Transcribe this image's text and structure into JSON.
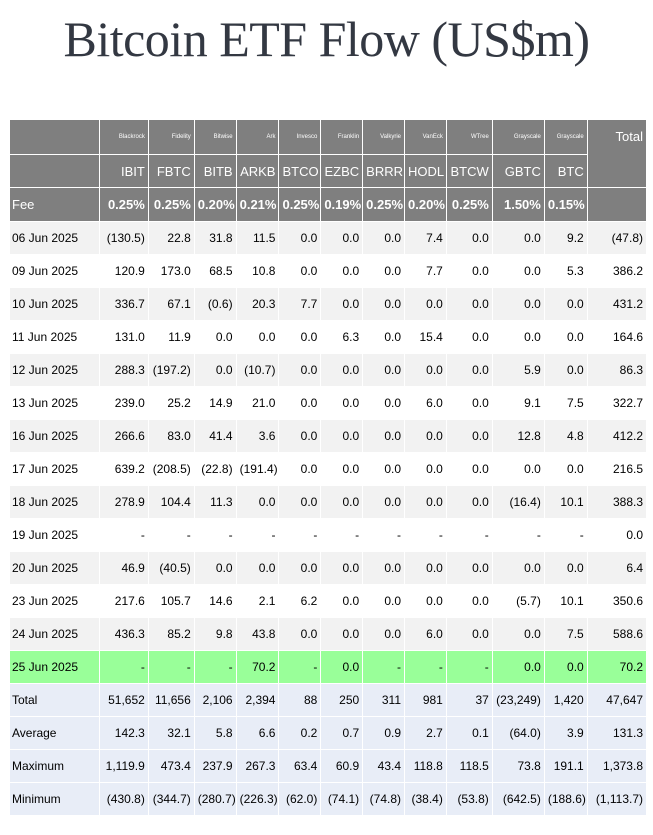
{
  "title": "Bitcoin ETF Flow (US$m)",
  "colors": {
    "header_bg": "#7f7f7f",
    "row_alt_bg": "#f2f2f2",
    "highlight_bg": "#99ff99",
    "stats_bg": "#e8edf7",
    "negative_text": "#e00000"
  },
  "chart_data": {
    "type": "table",
    "title": "Bitcoin ETF Flow (US$m)",
    "columns": [
      {
        "issuer": "Blackrock",
        "ticker": "IBIT",
        "fee": "0.25%"
      },
      {
        "issuer": "Fidelity",
        "ticker": "FBTC",
        "fee": "0.25%"
      },
      {
        "issuer": "Bitwise",
        "ticker": "BITB",
        "fee": "0.20%"
      },
      {
        "issuer": "Ark",
        "ticker": "ARKB",
        "fee": "0.21%"
      },
      {
        "issuer": "Invesco",
        "ticker": "BTCO",
        "fee": "0.25%"
      },
      {
        "issuer": "Franklin",
        "ticker": "EZBC",
        "fee": "0.19%"
      },
      {
        "issuer": "Valkyrie",
        "ticker": "BRRR",
        "fee": "0.25%"
      },
      {
        "issuer": "VanEck",
        "ticker": "HODL",
        "fee": "0.20%"
      },
      {
        "issuer": "WTree",
        "ticker": "BTCW",
        "fee": "0.25%"
      },
      {
        "issuer": "Grayscale",
        "ticker": "GBTC",
        "fee": "1.50%"
      },
      {
        "issuer": "Grayscale",
        "ticker": "BTC",
        "fee": "0.15%"
      }
    ],
    "total_label": "Total",
    "fee_label": "Fee",
    "rows": [
      {
        "date": "06 Jun 2025",
        "values": [
          "(130.5)",
          "22.8",
          "31.8",
          "11.5",
          "0.0",
          "0.0",
          "0.0",
          "7.4",
          "0.0",
          "0.0",
          "9.2"
        ],
        "total": "(47.8)"
      },
      {
        "date": "09 Jun 2025",
        "values": [
          "120.9",
          "173.0",
          "68.5",
          "10.8",
          "0.0",
          "0.0",
          "0.0",
          "7.7",
          "0.0",
          "0.0",
          "5.3"
        ],
        "total": "386.2"
      },
      {
        "date": "10 Jun 2025",
        "values": [
          "336.7",
          "67.1",
          "(0.6)",
          "20.3",
          "7.7",
          "0.0",
          "0.0",
          "0.0",
          "0.0",
          "0.0",
          "0.0"
        ],
        "total": "431.2"
      },
      {
        "date": "11 Jun 2025",
        "values": [
          "131.0",
          "11.9",
          "0.0",
          "0.0",
          "0.0",
          "6.3",
          "0.0",
          "15.4",
          "0.0",
          "0.0",
          "0.0"
        ],
        "total": "164.6"
      },
      {
        "date": "12 Jun 2025",
        "values": [
          "288.3",
          "(197.2)",
          "0.0",
          "(10.7)",
          "0.0",
          "0.0",
          "0.0",
          "0.0",
          "0.0",
          "5.9",
          "0.0"
        ],
        "total": "86.3"
      },
      {
        "date": "13 Jun 2025",
        "values": [
          "239.0",
          "25.2",
          "14.9",
          "21.0",
          "0.0",
          "0.0",
          "0.0",
          "6.0",
          "0.0",
          "9.1",
          "7.5"
        ],
        "total": "322.7"
      },
      {
        "date": "16 Jun 2025",
        "values": [
          "266.6",
          "83.0",
          "41.4",
          "3.6",
          "0.0",
          "0.0",
          "0.0",
          "0.0",
          "0.0",
          "12.8",
          "4.8"
        ],
        "total": "412.2"
      },
      {
        "date": "17 Jun 2025",
        "values": [
          "639.2",
          "(208.5)",
          "(22.8)",
          "(191.4)",
          "0.0",
          "0.0",
          "0.0",
          "0.0",
          "0.0",
          "0.0",
          "0.0"
        ],
        "total": "216.5"
      },
      {
        "date": "18 Jun 2025",
        "values": [
          "278.9",
          "104.4",
          "11.3",
          "0.0",
          "0.0",
          "0.0",
          "0.0",
          "0.0",
          "0.0",
          "(16.4)",
          "10.1"
        ],
        "total": "388.3"
      },
      {
        "date": "19 Jun 2025",
        "values": [
          "-",
          "-",
          "-",
          "-",
          "-",
          "-",
          "-",
          "-",
          "-",
          "-",
          "-"
        ],
        "total": "0.0"
      },
      {
        "date": "20 Jun 2025",
        "values": [
          "46.9",
          "(40.5)",
          "0.0",
          "0.0",
          "0.0",
          "0.0",
          "0.0",
          "0.0",
          "0.0",
          "0.0",
          "0.0"
        ],
        "total": "6.4"
      },
      {
        "date": "23 Jun 2025",
        "values": [
          "217.6",
          "105.7",
          "14.6",
          "2.1",
          "6.2",
          "0.0",
          "0.0",
          "0.0",
          "0.0",
          "(5.7)",
          "10.1"
        ],
        "total": "350.6"
      },
      {
        "date": "24 Jun 2025",
        "values": [
          "436.3",
          "85.2",
          "9.8",
          "43.8",
          "0.0",
          "0.0",
          "0.0",
          "6.0",
          "0.0",
          "0.0",
          "7.5"
        ],
        "total": "588.6"
      },
      {
        "date": "25 Jun 2025",
        "values": [
          "-",
          "-",
          "-",
          "70.2",
          "-",
          "0.0",
          "-",
          "-",
          "-",
          "0.0",
          "0.0"
        ],
        "total": "70.2",
        "highlight": true
      }
    ],
    "stats": [
      {
        "label": "Total",
        "values": [
          "51,652",
          "11,656",
          "2,106",
          "2,394",
          "88",
          "250",
          "311",
          "981",
          "37",
          "(23,249)",
          "1,420"
        ],
        "total": "47,647"
      },
      {
        "label": "Average",
        "values": [
          "142.3",
          "32.1",
          "5.8",
          "6.6",
          "0.2",
          "0.7",
          "0.9",
          "2.7",
          "0.1",
          "(64.0)",
          "3.9"
        ],
        "total": "131.3"
      },
      {
        "label": "Maximum",
        "values": [
          "1,119.9",
          "473.4",
          "237.9",
          "267.3",
          "63.4",
          "60.9",
          "43.4",
          "118.8",
          "118.5",
          "73.8",
          "191.1"
        ],
        "total": "1,373.8"
      },
      {
        "label": "Minimum",
        "values": [
          "(430.8)",
          "(344.7)",
          "(280.7)",
          "(226.3)",
          "(62.0)",
          "(74.1)",
          "(74.8)",
          "(38.4)",
          "(53.8)",
          "(642.5)",
          "(188.6)"
        ],
        "total": "(1,113.7)"
      }
    ]
  }
}
